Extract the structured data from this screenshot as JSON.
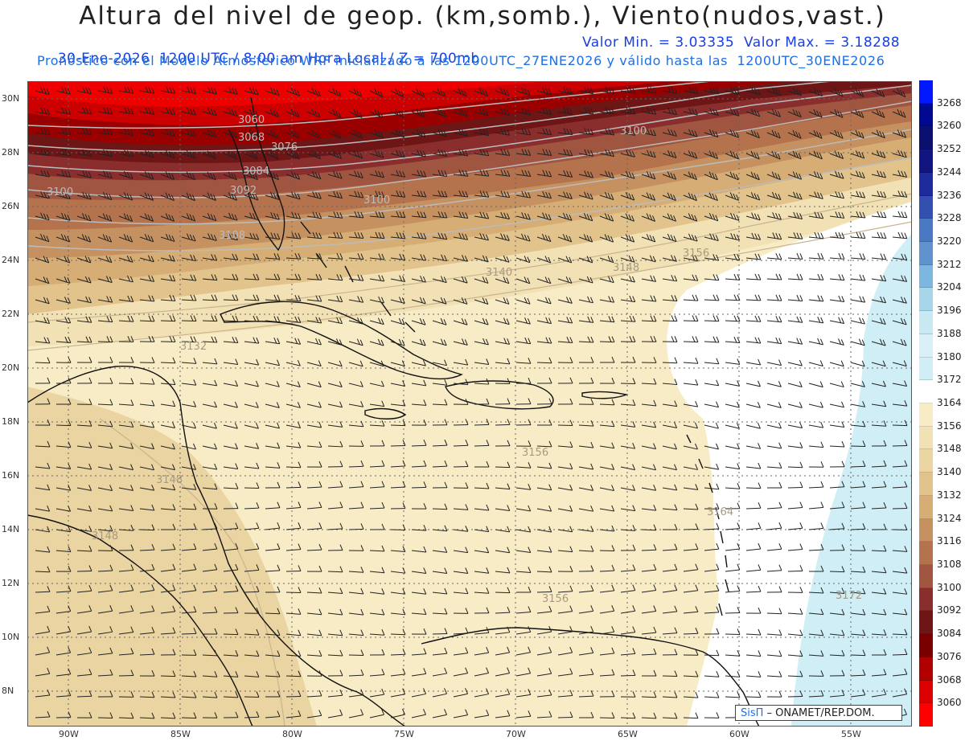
{
  "header": {
    "title": "Altura del nivel de geop. (km,somb.), Viento(nudos,vast.)",
    "line1_left": "30-Ene-2026  1200 UTC / 8:00 am Hora Local / Z = 700mb",
    "line1_right": "Valor Min. = 3.03335  Valor Max. = 3.18288",
    "line2": "Pronóstico con el Modelo Atmosferico WRF inicializado a las 1200UTC_27ENE2026 y válido hasta las  1200UTC_30ENE2026"
  },
  "map": {
    "lon_labels": [
      "90W",
      "85W",
      "80W",
      "75W",
      "70W",
      "65W",
      "60W",
      "55W"
    ],
    "lat_labels": [
      "30N",
      "28N",
      "26N",
      "24N",
      "22N",
      "20N",
      "18N",
      "16N",
      "14N",
      "12N",
      "10N",
      "8N"
    ],
    "contour_labels": [
      "3060",
      "3068",
      "3076",
      "3084",
      "3092",
      "3100",
      "3100",
      "3100",
      "3108",
      "3148",
      "3156",
      "3140",
      "3132",
      "3148",
      "3148",
      "3156",
      "3164",
      "3156",
      "3172"
    ]
  },
  "colorbar": {
    "labels": [
      "3268",
      "3260",
      "3252",
      "3244",
      "3236",
      "3228",
      "3220",
      "3212",
      "3204",
      "3196",
      "3188",
      "3180",
      "3172",
      "3164",
      "3156",
      "3148",
      "3140",
      "3132",
      "3124",
      "3116",
      "3108",
      "3100",
      "3092",
      "3084",
      "3076",
      "3068",
      "3060"
    ],
    "colors": [
      "#0019ff",
      "#000a90",
      "#0a0f70",
      "#101580",
      "#1d2a9c",
      "#3350b0",
      "#4a78c2",
      "#5e93cd",
      "#7db6de",
      "#a6d6ea",
      "#c8e8f2",
      "#d9f1f6",
      "#cfeef5",
      "#ffffff",
      "#f8ecc6",
      "#f2e1b4",
      "#ead4a1",
      "#e1c38b",
      "#d5ad75",
      "#c69160",
      "#b4734c",
      "#a05540",
      "#8a2d2d",
      "#6e1515",
      "#7a0000",
      "#b00000",
      "#dd0000",
      "#ff0000"
    ]
  },
  "credit": {
    "brand": "SisΠ",
    "text": " – ONAMET/REP.DOM."
  }
}
